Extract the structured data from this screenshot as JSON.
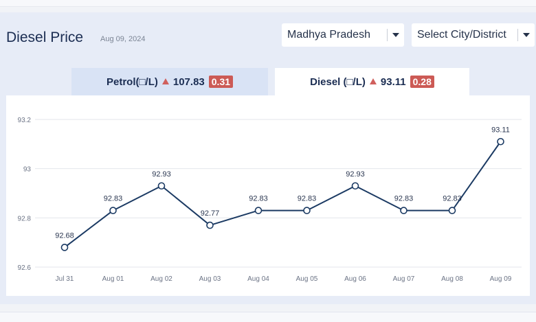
{
  "header": {
    "title": "Diesel Price",
    "date": "Aug 09, 2024"
  },
  "filters": {
    "state": "Madhya Pradesh",
    "city_placeholder": "Select City/District"
  },
  "tabs": [
    {
      "name": "Petrol(□/L)",
      "price": "107.83",
      "change": "0.31"
    },
    {
      "name": "Diesel (□/L)",
      "price": "93.11",
      "change": "0.28"
    }
  ],
  "colors": {
    "line": "#1b3a63",
    "badge": "#cc5a55",
    "up_arrow": "#d0605d"
  },
  "chart_data": {
    "type": "line",
    "categories": [
      "Jul 31",
      "Aug 01",
      "Aug 02",
      "Aug 03",
      "Aug 04",
      "Aug 05",
      "Aug 06",
      "Aug 07",
      "Aug 08",
      "Aug 09"
    ],
    "values": [
      92.68,
      92.83,
      92.93,
      92.77,
      92.83,
      92.83,
      92.93,
      92.83,
      92.83,
      93.11
    ],
    "data_labels": [
      "92.68",
      "92.83",
      "92.93",
      "92.77",
      "92.83",
      "92.83",
      "92.93",
      "92.83",
      "92.83",
      "93.11"
    ],
    "yticks": [
      "92.6",
      "92.8",
      "93",
      "93.2"
    ],
    "ylim": [
      92.6,
      93.2
    ],
    "grid": true
  }
}
